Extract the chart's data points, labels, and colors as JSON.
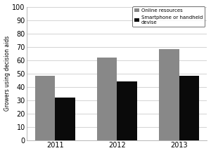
{
  "years": [
    "2011",
    "2012",
    "2013"
  ],
  "online_resources": [
    48,
    62,
    68
  ],
  "smartphone_handheld": [
    32,
    44,
    48
  ],
  "bar_color_online": "#888888",
  "bar_color_smartphone": "#0a0a0a",
  "ylabel": "Growers using decision aids",
  "ylim": [
    0,
    100
  ],
  "yticks": [
    0,
    10,
    20,
    30,
    40,
    50,
    60,
    70,
    80,
    90,
    100
  ],
  "legend_label_online": "Online resources",
  "legend_label_smartphone": "Smartphone or handheld\ndevise",
  "bar_width": 0.32,
  "background_color": "#ffffff",
  "plot_bg_color": "#ffffff",
  "grid_color": "#cccccc"
}
